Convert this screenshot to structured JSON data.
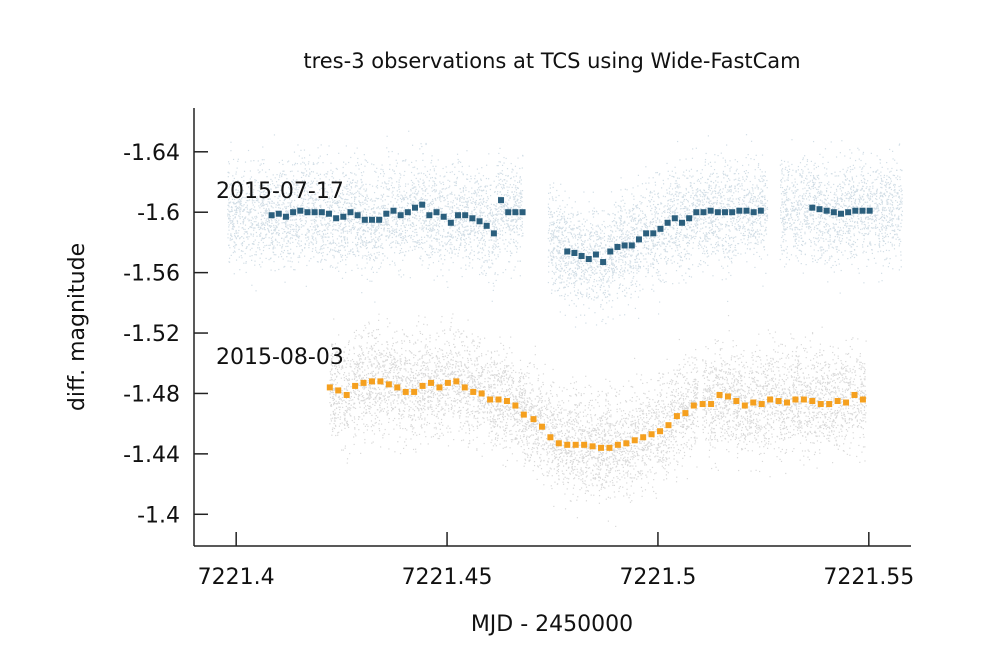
{
  "chart_data": {
    "type": "scatter",
    "title": "tres-3 observations at TCS using Wide-FastCam",
    "xlabel": "MJD - 2450000",
    "ylabel": "diff. magnitude",
    "xlim": [
      7221.39,
      7221.56
    ],
    "ylim": [
      -1.379,
      -1.669
    ],
    "x_ticks": [
      "7221.4",
      "7221.45",
      "7221.5",
      "7221.55"
    ],
    "y_ticks": [
      "-1.64",
      "-1.6",
      "-1.56",
      "-1.52",
      "-1.48",
      "-1.44",
      "-1.4"
    ],
    "grid": false,
    "annotations": [
      "2015-07-17",
      "2015-08-03"
    ],
    "series": [
      {
        "name": "2015-07-17",
        "color": "#2b5f7d",
        "raw_color": "#d2dee6",
        "raw_scatter": {
          "segments": [
            [
              7221.398,
              7221.468
            ],
            [
              7221.474,
              7221.526
            ],
            [
              7221.529,
              7221.558
            ]
          ],
          "center_offset": 0.001,
          "sigma": 0.024
        },
        "x": [
          7221.4084,
          7221.4101,
          7221.4118,
          7221.4135,
          7221.4152,
          7221.4169,
          7221.4186,
          7221.4203,
          7221.422,
          7221.4237,
          7221.4254,
          7221.4271,
          7221.4288,
          7221.4305,
          7221.4322,
          7221.4339,
          7221.4356,
          7221.4373,
          7221.439,
          7221.4407,
          7221.4424,
          7221.4441,
          7221.4458,
          7221.4475,
          7221.4492,
          7221.4509,
          7221.4526,
          7221.4543,
          7221.456,
          7221.4577,
          7221.4594,
          7221.4611,
          7221.4628,
          7221.4645,
          7221.4662,
          7221.4679,
          7221.4785,
          7221.4802,
          7221.4819,
          7221.4836,
          7221.4853,
          7221.487,
          7221.4887,
          7221.4904,
          7221.4921,
          7221.4938,
          7221.4955,
          7221.4972,
          7221.4989,
          7221.5006,
          7221.5023,
          7221.504,
          7221.5057,
          7221.5074,
          7221.5091,
          7221.5108,
          7221.5125,
          7221.5142,
          7221.5159,
          7221.5176,
          7221.5193,
          7221.521,
          7221.5227,
          7221.5244,
          7221.5366,
          7221.5383,
          7221.54,
          7221.5417,
          7221.5434,
          7221.5451,
          7221.5468,
          7221.5485,
          7221.5502
        ],
        "values": [
          -1.598,
          -1.599,
          -1.597,
          -1.6,
          -1.601,
          -1.6,
          -1.6,
          -1.6,
          -1.599,
          -1.596,
          -1.597,
          -1.6,
          -1.598,
          -1.595,
          -1.595,
          -1.595,
          -1.599,
          -1.601,
          -1.598,
          -1.6,
          -1.603,
          -1.605,
          -1.598,
          -1.6,
          -1.597,
          -1.593,
          -1.598,
          -1.598,
          -1.596,
          -1.594,
          -1.591,
          -1.586,
          -1.608,
          -1.6,
          -1.6,
          -1.6,
          -1.574,
          -1.573,
          -1.571,
          -1.569,
          -1.572,
          -1.567,
          -1.574,
          -1.577,
          -1.578,
          -1.578,
          -1.582,
          -1.586,
          -1.586,
          -1.589,
          -1.593,
          -1.596,
          -1.593,
          -1.596,
          -1.6,
          -1.6,
          -1.601,
          -1.6,
          -1.6,
          -1.6,
          -1.601,
          -1.601,
          -1.6,
          -1.601,
          -1.603,
          -1.602,
          -1.601,
          -1.6,
          -1.599,
          -1.6,
          -1.601,
          -1.601,
          -1.601
        ]
      },
      {
        "name": "2015-08-03",
        "color": "#f5a01f",
        "raw_color": "#d9d9d9",
        "raw_scatter": {
          "segments": [
            [
              7221.4222,
              7221.4705
            ],
            [
              7221.4705,
              7221.5096
            ],
            [
              7221.5106,
              7221.5494
            ]
          ],
          "center_offset": 0.0,
          "sigma": 0.024
        },
        "x": [
          7221.4222,
          7221.4242,
          7221.4262,
          7221.4282,
          7221.4302,
          7221.4322,
          7221.4342,
          7221.4362,
          7221.4382,
          7221.4402,
          7221.4422,
          7221.4442,
          7221.4462,
          7221.4482,
          7221.4502,
          7221.4522,
          7221.4542,
          7221.4562,
          7221.4582,
          7221.4602,
          7221.4622,
          7221.4642,
          7221.4662,
          7221.4682,
          7221.4705,
          7221.4725,
          7221.4745,
          7221.4765,
          7221.4785,
          7221.4805,
          7221.4825,
          7221.4845,
          7221.4865,
          7221.4885,
          7221.4905,
          7221.4925,
          7221.4945,
          7221.4965,
          7221.4985,
          7221.5005,
          7221.5025,
          7221.5045,
          7221.5065,
          7221.5085,
          7221.5106,
          7221.5126,
          7221.5146,
          7221.5166,
          7221.5186,
          7221.5206,
          7221.5226,
          7221.5246,
          7221.5266,
          7221.5286,
          7221.5306,
          7221.5326,
          7221.5346,
          7221.5366,
          7221.5386,
          7221.5406,
          7221.5426,
          7221.5446,
          7221.5466,
          7221.5486
        ],
        "values": [
          -1.484,
          -1.482,
          -1.479,
          -1.485,
          -1.487,
          -1.488,
          -1.488,
          -1.486,
          -1.484,
          -1.481,
          -1.481,
          -1.485,
          -1.487,
          -1.484,
          -1.487,
          -1.488,
          -1.484,
          -1.481,
          -1.48,
          -1.476,
          -1.476,
          -1.475,
          -1.472,
          -1.466,
          -1.463,
          -1.458,
          -1.451,
          -1.447,
          -1.446,
          -1.446,
          -1.446,
          -1.445,
          -1.444,
          -1.444,
          -1.446,
          -1.447,
          -1.449,
          -1.451,
          -1.453,
          -1.455,
          -1.459,
          -1.465,
          -1.467,
          -1.472,
          -1.473,
          -1.473,
          -1.479,
          -1.478,
          -1.475,
          -1.472,
          -1.474,
          -1.473,
          -1.476,
          -1.475,
          -1.474,
          -1.476,
          -1.476,
          -1.475,
          -1.473,
          -1.473,
          -1.475,
          -1.474,
          -1.479,
          -1.476
        ]
      }
    ]
  }
}
